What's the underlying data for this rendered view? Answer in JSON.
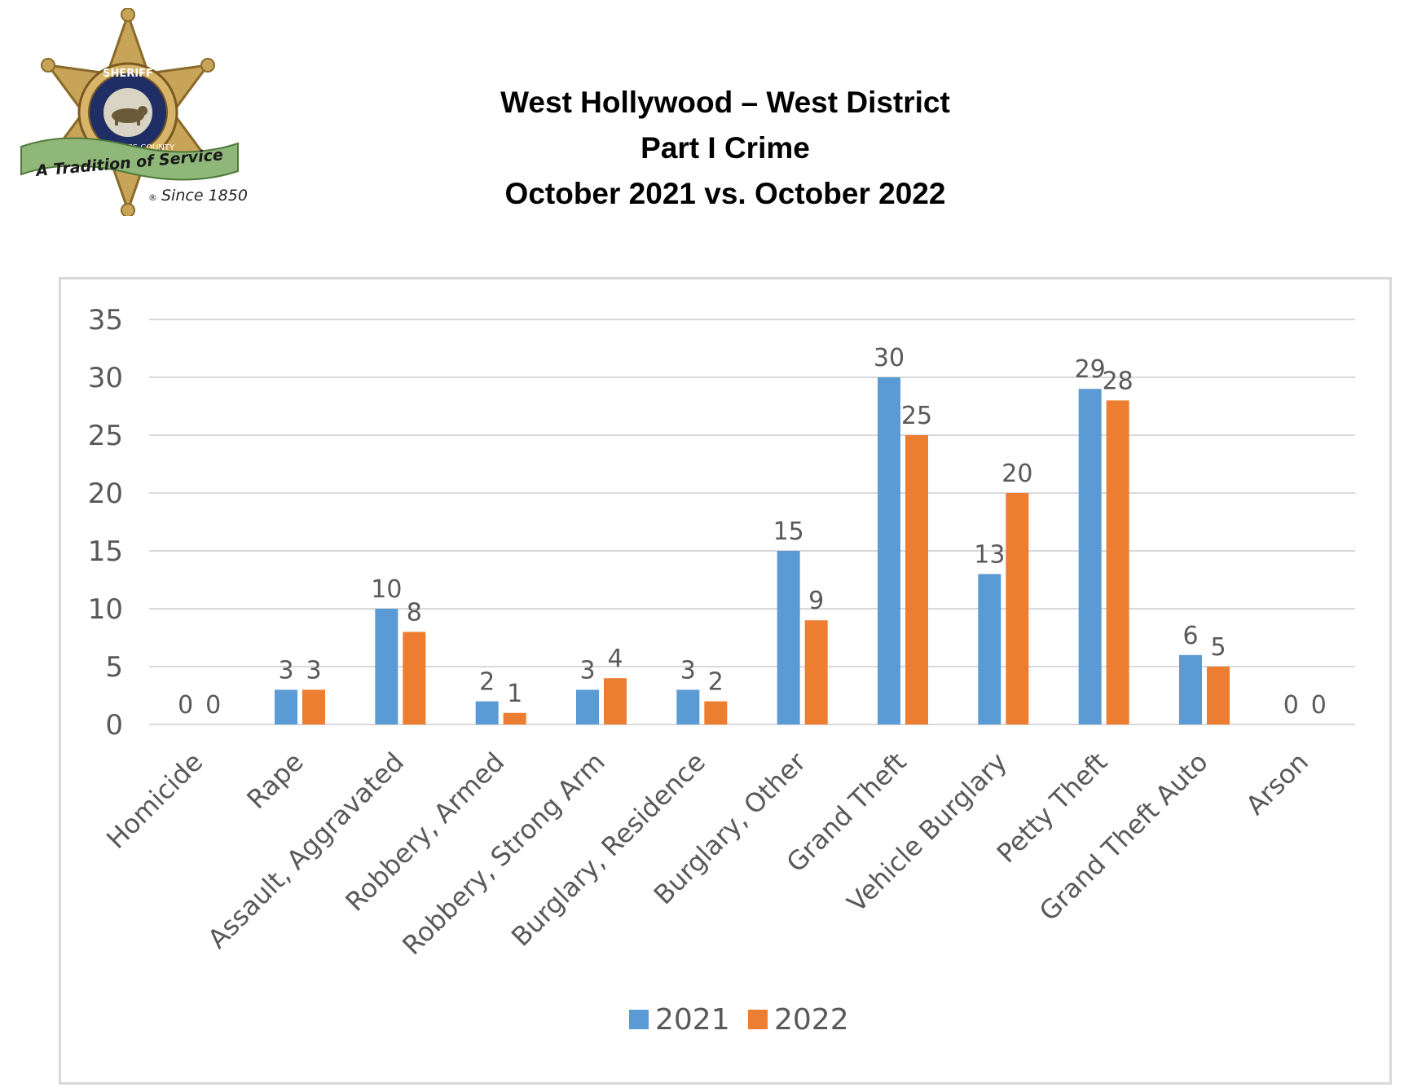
{
  "header": {
    "title_line1": "West Hollywood – West District",
    "title_line2": "Part I Crime",
    "title_line3": "October 2021 vs. October 2022"
  },
  "logo": {
    "icon": "sheriff-star-badge-icon",
    "badge_top": "SHERIFF",
    "badge_ring": "LOS ANGELES COUNTY",
    "ribbon": "A Tradition of Service",
    "since": "Since 1850",
    "registered": "®"
  },
  "colors": {
    "series_2021": "#5b9bd5",
    "series_2022": "#ed7d31",
    "grid": "#d9d9d9",
    "text": "#595959"
  },
  "chart_data": {
    "type": "bar",
    "title": "",
    "xlabel": "",
    "ylabel": "",
    "ylim": [
      0,
      35
    ],
    "yticks": [
      0,
      5,
      10,
      15,
      20,
      25,
      30,
      35
    ],
    "grid": true,
    "legend_position": "bottom",
    "categories": [
      "Homicide",
      "Rape",
      "Assault, Aggravated",
      "Robbery, Armed",
      "Robbery, Strong Arm",
      "Burglary, Residence",
      "Burglary, Other",
      "Grand Theft",
      "Vehicle Burglary",
      "Petty Theft",
      "Grand Theft Auto",
      "Arson"
    ],
    "series": [
      {
        "name": "2021",
        "color": "#5b9bd5",
        "values": [
          0,
          3,
          10,
          2,
          3,
          3,
          15,
          30,
          13,
          29,
          6,
          0
        ]
      },
      {
        "name": "2022",
        "color": "#ed7d31",
        "values": [
          0,
          3,
          8,
          1,
          4,
          2,
          9,
          25,
          20,
          28,
          5,
          0
        ]
      }
    ]
  }
}
